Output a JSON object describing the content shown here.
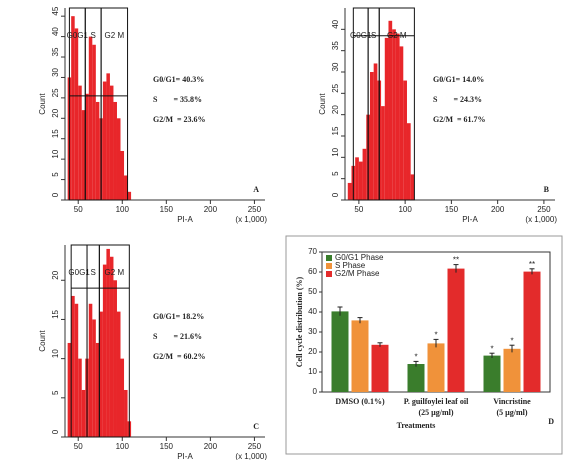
{
  "chart_data": [
    {
      "type": "histogram",
      "panel_label": "A",
      "x_label": "PI-A",
      "x_unit": "(x 1,000)",
      "y_label": "Count",
      "color": "#e8262a",
      "bins": [
        38,
        42,
        46,
        50,
        54,
        58,
        62,
        66,
        70,
        74,
        78,
        82,
        86,
        90,
        94,
        98,
        102,
        106,
        110
      ],
      "counts": [
        30,
        45,
        42,
        28,
        22,
        26,
        40,
        38,
        24,
        20,
        29,
        31,
        28,
        24,
        20,
        12,
        6,
        2
      ],
      "xlim": [
        35,
        262
      ],
      "xticks": [
        50,
        100,
        150,
        200,
        250
      ],
      "ylim": [
        0,
        47
      ],
      "yticks": [
        0,
        5,
        10,
        15,
        20,
        25,
        30,
        35,
        40,
        45
      ],
      "gates": [
        {
          "label": "G0G1",
          "range": [
            40,
            58
          ]
        },
        {
          "label": "S",
          "range": [
            58,
            76
          ]
        },
        {
          "label": "G2 M",
          "range": [
            76,
            106
          ]
        }
      ],
      "gate_level": 25.5,
      "annotations": [
        "G0/G1= 40.3%",
        "S        = 35.8%",
        "G2/M  = 23.6%"
      ]
    },
    {
      "type": "histogram",
      "panel_label": "B",
      "x_label": "PI-A",
      "x_unit": "(x 1,000)",
      "y_label": "Count",
      "color": "#e8262a",
      "bins": [
        38,
        42,
        46,
        50,
        54,
        58,
        62,
        66,
        70,
        74,
        78,
        82,
        86,
        90,
        94,
        98,
        102,
        106,
        110
      ],
      "counts": [
        4,
        8,
        10,
        9,
        12,
        20,
        30,
        32,
        28,
        22,
        38,
        42,
        40,
        39,
        36,
        28,
        18,
        6
      ],
      "xlim": [
        35,
        262
      ],
      "xticks": [
        50,
        100,
        150,
        200,
        250
      ],
      "ylim": [
        0,
        45
      ],
      "yticks": [
        0,
        5,
        10,
        15,
        20,
        25,
        30,
        35,
        40
      ],
      "gates": [
        {
          "label": "G0G1",
          "range": [
            44,
            60
          ]
        },
        {
          "label": "S",
          "range": [
            60,
            72
          ]
        },
        {
          "label": "G2 M",
          "range": [
            72,
            110
          ]
        }
      ],
      "gate_level": 38.5,
      "annotations": [
        "G0/G1= 14.0%",
        "S        = 24.3%",
        "G2/M  = 61.7%"
      ]
    },
    {
      "type": "histogram",
      "panel_label": "C",
      "x_label": "PI-A",
      "x_unit": "(x 1,000)",
      "y_label": "Count",
      "color": "#e8262a",
      "bins": [
        38,
        42,
        46,
        50,
        54,
        58,
        62,
        66,
        70,
        74,
        78,
        82,
        86,
        90,
        94,
        98,
        102,
        106,
        110
      ],
      "counts": [
        12,
        18,
        17,
        10,
        6,
        10,
        17,
        15,
        12,
        16,
        22,
        24,
        23,
        20,
        16,
        10,
        6,
        2
      ],
      "xlim": [
        35,
        262
      ],
      "xticks": [
        50,
        100,
        150,
        200,
        250
      ],
      "ylim": [
        0,
        24.5
      ],
      "yticks": [
        0,
        5,
        10,
        15,
        20
      ],
      "gates": [
        {
          "label": "G0G1",
          "range": [
            42,
            60
          ]
        },
        {
          "label": "S",
          "range": [
            60,
            74
          ]
        },
        {
          "label": "G2 M",
          "range": [
            74,
            108
          ]
        }
      ],
      "gate_level": 19,
      "annotations": [
        "G0/G1= 18.2%",
        "S        = 21.6%",
        "G2/M  = 60.2%"
      ]
    },
    {
      "type": "bar",
      "panel_label": "D",
      "x_label": "Treatments",
      "y_label": "Cell cycle distribution (%)",
      "categories": [
        [
          "DMSO (0.1%)"
        ],
        [
          "P. guilfoylei leaf oil",
          "(25 µg/ml)"
        ],
        [
          "Vincristine",
          "(5 µg/ml)"
        ]
      ],
      "ylim": [
        0,
        70
      ],
      "yticks": [
        0,
        10,
        20,
        30,
        40,
        50,
        60,
        70
      ],
      "legend": "top-left",
      "series": [
        {
          "name": "G0/G1 Phase",
          "color": "#3a7d2c",
          "values": [
            40.3,
            14.0,
            18.2
          ],
          "errors": [
            2.2,
            1.3,
            1.2
          ],
          "significance": [
            null,
            "*",
            "*"
          ]
        },
        {
          "name": "S Phase",
          "color": "#f0923a",
          "values": [
            35.8,
            24.3,
            21.6
          ],
          "errors": [
            1.4,
            2.0,
            1.8
          ],
          "significance": [
            null,
            "*",
            "*"
          ]
        },
        {
          "name": "G2/M Phase",
          "color": "#e32b2b",
          "values": [
            23.6,
            61.7,
            60.2
          ],
          "errors": [
            1.0,
            2.0,
            1.4
          ],
          "significance": [
            null,
            "**",
            "**"
          ]
        }
      ]
    }
  ]
}
